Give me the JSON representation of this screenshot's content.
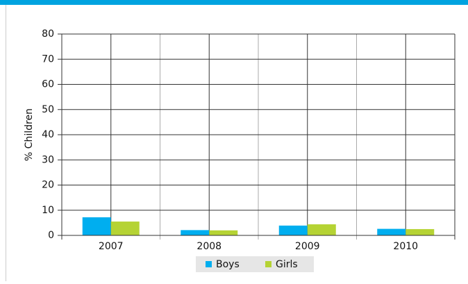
{
  "chart_data": {
    "type": "bar",
    "ylabel": "% Children",
    "categories": [
      "2007",
      "2008",
      "2009",
      "2010"
    ],
    "series": [
      {
        "name": "Boys",
        "color": "#00aeef",
        "values": [
          7.2,
          2.1,
          3.9,
          2.6
        ]
      },
      {
        "name": "Girls",
        "color": "#b5d334",
        "values": [
          5.5,
          2.0,
          4.4,
          2.5
        ]
      }
    ],
    "ylim": [
      0,
      80
    ],
    "yticks": [
      0,
      10,
      20,
      30,
      40,
      50,
      60,
      70,
      80
    ],
    "grid": true
  }
}
